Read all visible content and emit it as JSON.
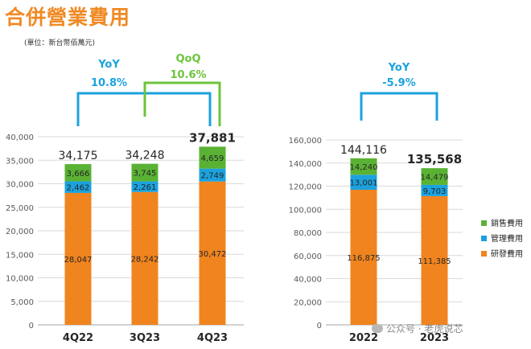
{
  "header": {
    "title": "合併營業費用",
    "unit_note": "(單位：新台幣佰萬元)"
  },
  "watermark": "公众号 · 老虎说芯",
  "colors": {
    "rd": "#f0841f",
    "admin": "#1ba2de",
    "selling": "#5ab234",
    "yoy": "#1ba2de",
    "qoq": "#6cc43c",
    "title": "#f08a25"
  },
  "chart_data": [
    {
      "type": "bar",
      "stacked": true,
      "categories": [
        "4Q22",
        "3Q23",
        "4Q23"
      ],
      "series": [
        {
          "name": "研發費用",
          "color": "#f0841f",
          "values": [
            28047,
            28242,
            30472
          ],
          "labels": [
            "28,047",
            "28,242",
            "30,472"
          ]
        },
        {
          "name": "管理費用",
          "color": "#1ba2de",
          "values": [
            2462,
            2261,
            2749
          ],
          "labels": [
            "2,462",
            "2,261",
            "2,749"
          ]
        },
        {
          "name": "銷售費用",
          "color": "#5ab234",
          "values": [
            3666,
            3745,
            4659
          ],
          "labels": [
            "3,666",
            "3,745",
            "4,659"
          ]
        }
      ],
      "totals": [
        "34,175",
        "34,248",
        "37,881"
      ],
      "ylim": [
        0,
        40000
      ],
      "yticks": [
        "0",
        "5,000",
        "10,000",
        "15,000",
        "20,000",
        "25,000",
        "30,000",
        "35,000",
        "40,000"
      ],
      "grid": true,
      "comparisons": [
        {
          "label": "YoY",
          "value": "10.8%",
          "from": 0,
          "to": 2
        },
        {
          "label": "QoQ",
          "value": "10.6%",
          "from": 1,
          "to": 2
        }
      ]
    },
    {
      "type": "bar",
      "stacked": true,
      "categories": [
        "2022",
        "2023"
      ],
      "series": [
        {
          "name": "研發費用",
          "color": "#f0841f",
          "values": [
            116875,
            111385
          ],
          "labels": [
            "116,875",
            "111,385"
          ]
        },
        {
          "name": "管理費用",
          "color": "#1ba2de",
          "values": [
            13001,
            9703
          ],
          "labels": [
            "13,001",
            "9,703"
          ]
        },
        {
          "name": "銷售費用",
          "color": "#5ab234",
          "values": [
            14240,
            14479
          ],
          "labels": [
            "14,240",
            "14,479"
          ]
        }
      ],
      "totals": [
        "144,116",
        "135,568"
      ],
      "ylim": [
        0,
        160000
      ],
      "yticks": [
        "0",
        "20,000",
        "40,000",
        "60,000",
        "80,000",
        "100,000",
        "120,000",
        "140,000",
        "160,000"
      ],
      "grid": true,
      "legend_position": "right",
      "legend": [
        "銷售費用",
        "管理費用",
        "研發費用"
      ],
      "comparisons": [
        {
          "label": "YoY",
          "value": "-5.9%",
          "from": 0,
          "to": 1
        }
      ]
    }
  ]
}
